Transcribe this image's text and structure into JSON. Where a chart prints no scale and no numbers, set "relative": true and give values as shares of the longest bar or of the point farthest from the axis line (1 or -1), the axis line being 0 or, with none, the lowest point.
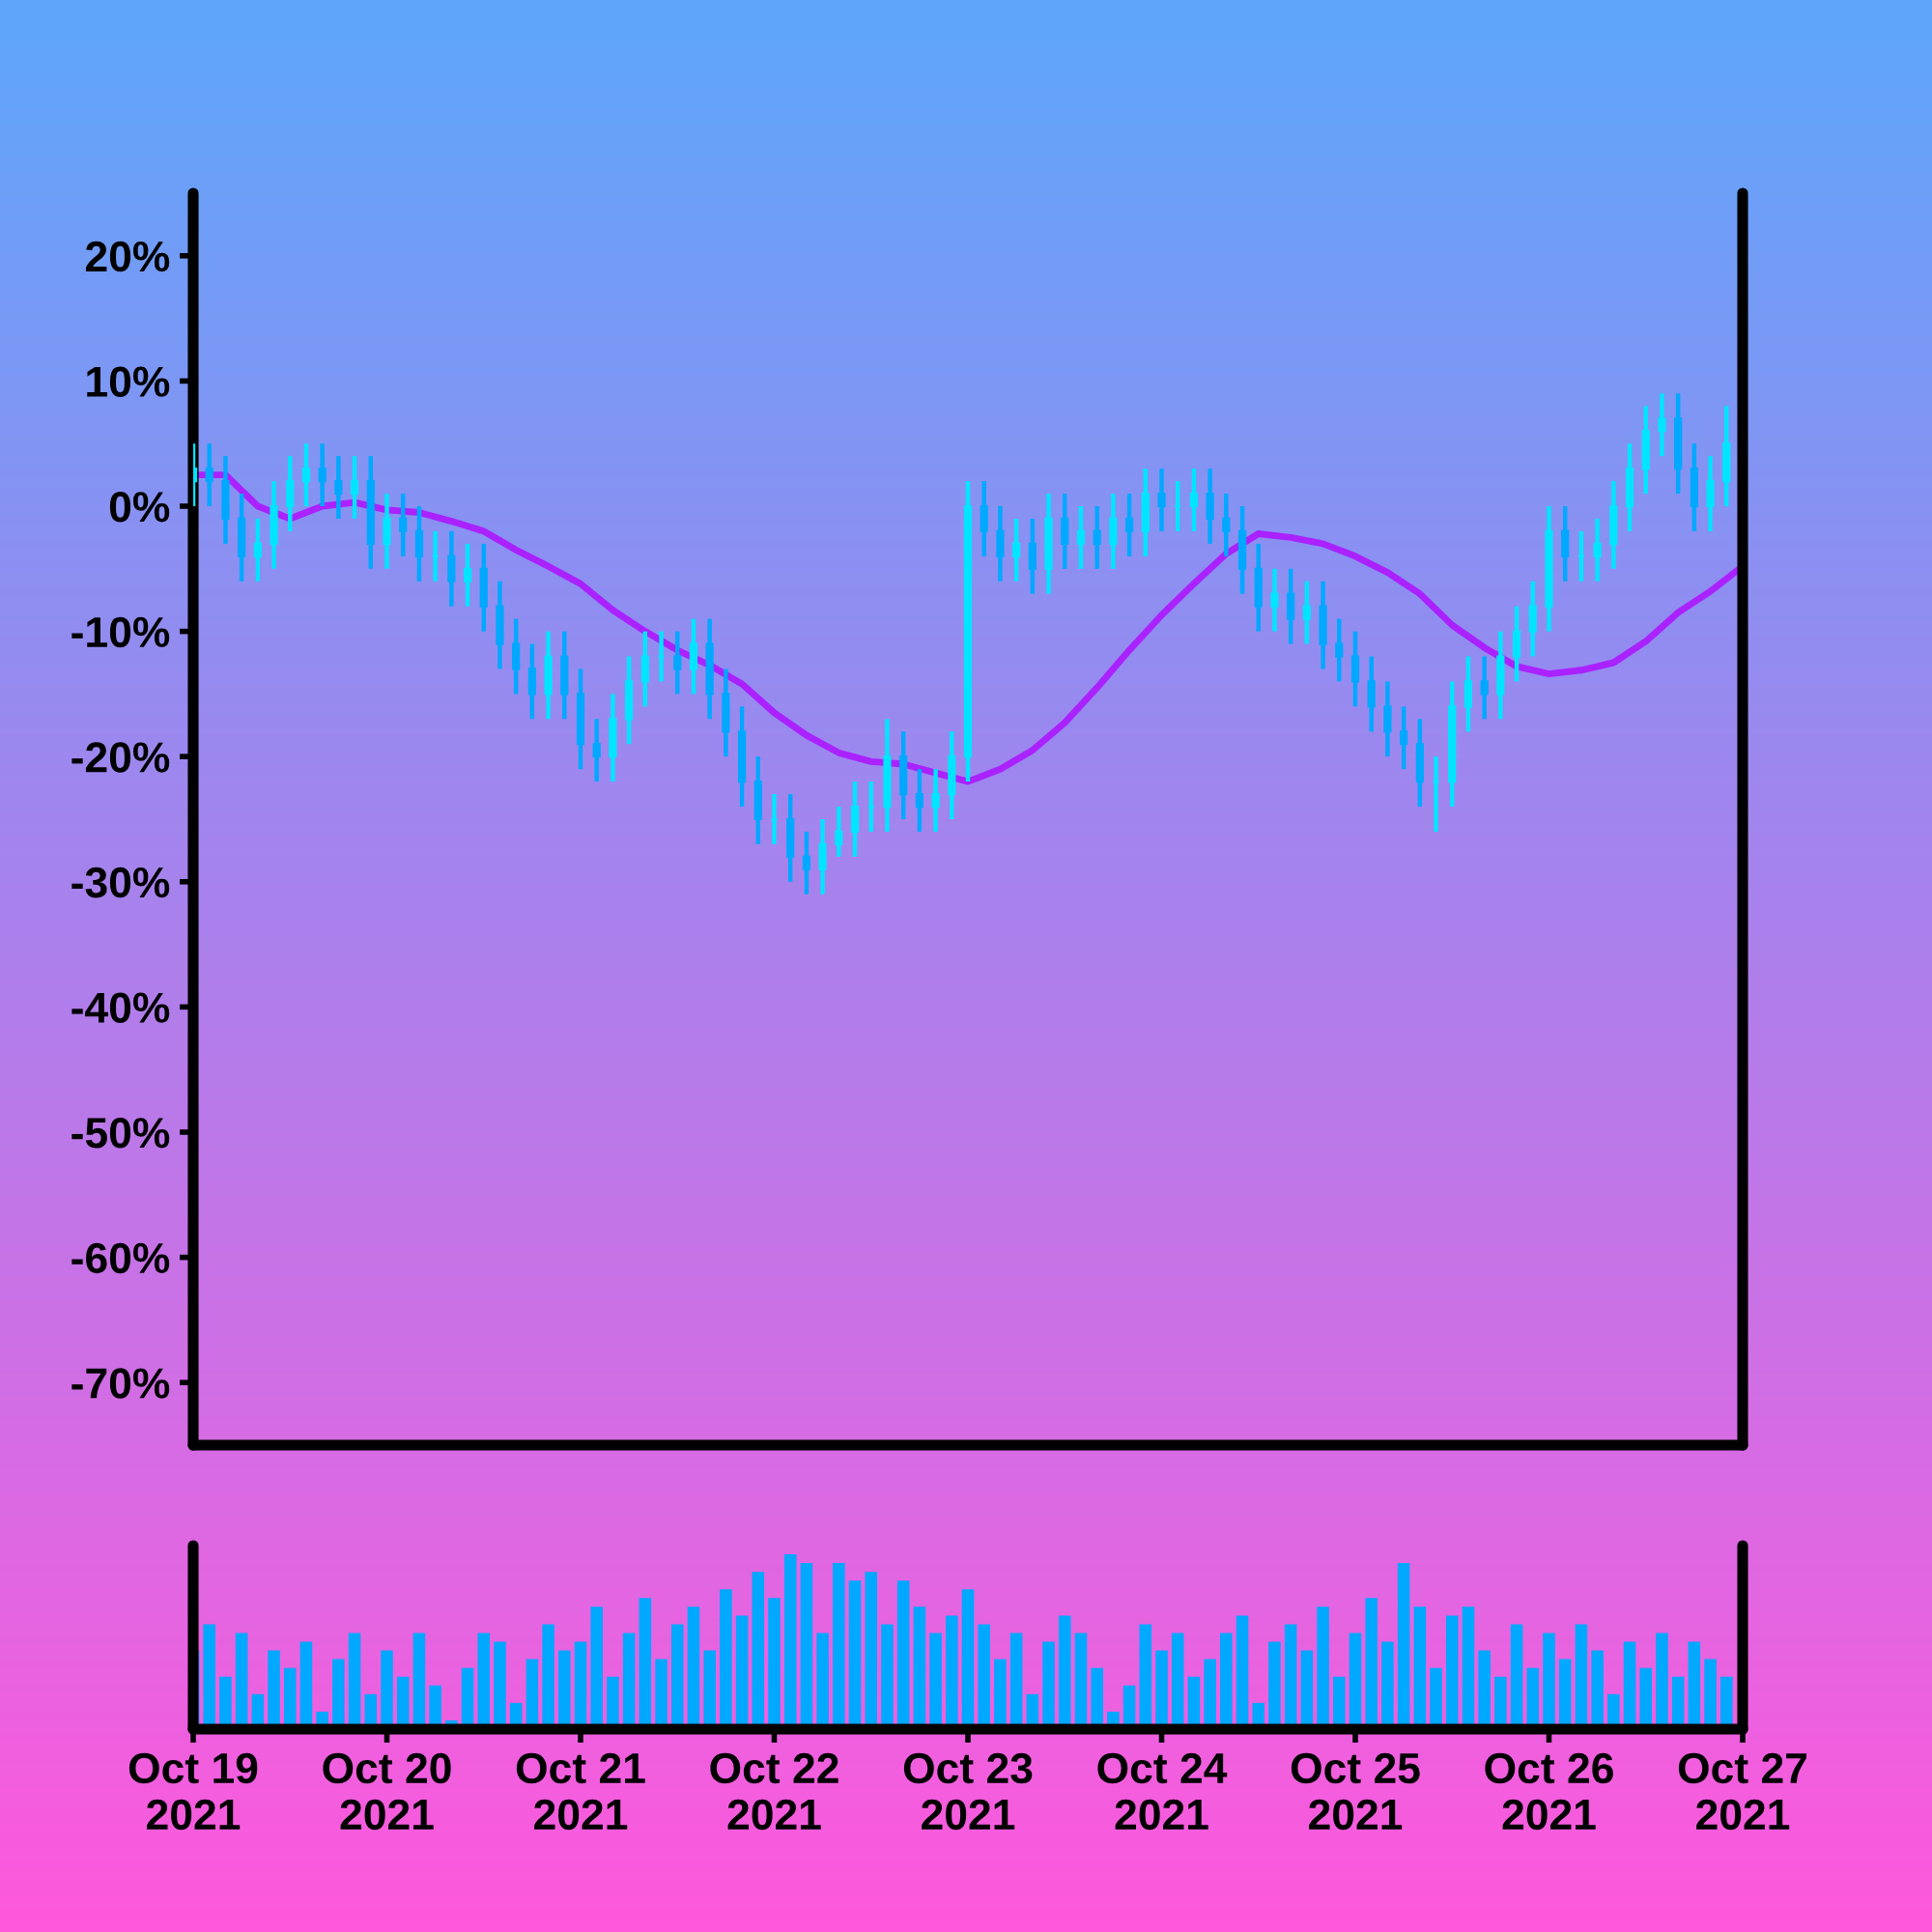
{
  "chart_data": [
    {
      "type": "candlestick",
      "tick_labels": "y",
      "xlim": [
        "2021-10-19",
        "2021-10-27"
      ],
      "ylim": [
        -75,
        25
      ],
      "yticks": [
        {
          "value": 20,
          "label": "20%"
        },
        {
          "value": 10,
          "label": "10%"
        },
        {
          "value": 0,
          "label": "0%"
        },
        {
          "value": -10,
          "label": "-10%"
        },
        {
          "value": -20,
          "label": "-20%"
        },
        {
          "value": -30,
          "label": "-30%"
        },
        {
          "value": -40,
          "label": "-40%"
        },
        {
          "value": -50,
          "label": "-50%"
        },
        {
          "value": -60,
          "label": "-60%"
        },
        {
          "value": -70,
          "label": "-70%"
        }
      ],
      "grid": false,
      "legend": false,
      "x": [
        "2021-10-19T00:00",
        "2021-10-19T02:00",
        "2021-10-19T04:00",
        "2021-10-19T06:00",
        "2021-10-19T08:00",
        "2021-10-19T10:00",
        "2021-10-19T12:00",
        "2021-10-19T14:00",
        "2021-10-19T16:00",
        "2021-10-19T18:00",
        "2021-10-19T20:00",
        "2021-10-19T22:00",
        "2021-10-20T00:00",
        "2021-10-20T02:00",
        "2021-10-20T04:00",
        "2021-10-20T06:00",
        "2021-10-20T08:00",
        "2021-10-20T10:00",
        "2021-10-20T12:00",
        "2021-10-20T14:00",
        "2021-10-20T16:00",
        "2021-10-20T18:00",
        "2021-10-20T20:00",
        "2021-10-20T22:00",
        "2021-10-21T00:00",
        "2021-10-21T02:00",
        "2021-10-21T04:00",
        "2021-10-21T06:00",
        "2021-10-21T08:00",
        "2021-10-21T10:00",
        "2021-10-21T12:00",
        "2021-10-21T14:00",
        "2021-10-21T16:00",
        "2021-10-21T18:00",
        "2021-10-21T20:00",
        "2021-10-21T22:00",
        "2021-10-22T00:00",
        "2021-10-22T02:00",
        "2021-10-22T04:00",
        "2021-10-22T06:00",
        "2021-10-22T08:00",
        "2021-10-22T10:00",
        "2021-10-22T12:00",
        "2021-10-22T14:00",
        "2021-10-22T16:00",
        "2021-10-22T18:00",
        "2021-10-22T20:00",
        "2021-10-22T22:00",
        "2021-10-23T00:00",
        "2021-10-23T02:00",
        "2021-10-23T04:00",
        "2021-10-23T06:00",
        "2021-10-23T08:00",
        "2021-10-23T10:00",
        "2021-10-23T12:00",
        "2021-10-23T14:00",
        "2021-10-23T16:00",
        "2021-10-23T18:00",
        "2021-10-23T20:00",
        "2021-10-23T22:00",
        "2021-10-24T00:00",
        "2021-10-24T02:00",
        "2021-10-24T04:00",
        "2021-10-24T06:00",
        "2021-10-24T08:00",
        "2021-10-24T10:00",
        "2021-10-24T12:00",
        "2021-10-24T14:00",
        "2021-10-24T16:00",
        "2021-10-24T18:00",
        "2021-10-24T20:00",
        "2021-10-24T22:00",
        "2021-10-25T00:00",
        "2021-10-25T02:00",
        "2021-10-25T04:00",
        "2021-10-25T06:00",
        "2021-10-25T08:00",
        "2021-10-25T10:00",
        "2021-10-25T12:00",
        "2021-10-25T14:00",
        "2021-10-25T16:00",
        "2021-10-25T18:00",
        "2021-10-25T20:00",
        "2021-10-25T22:00",
        "2021-10-26T00:00",
        "2021-10-26T02:00",
        "2021-10-26T04:00",
        "2021-10-26T06:00",
        "2021-10-26T08:00",
        "2021-10-26T10:00",
        "2021-10-26T12:00",
        "2021-10-26T14:00",
        "2021-10-26T16:00",
        "2021-10-26T18:00",
        "2021-10-26T20:00",
        "2021-10-26T22:00"
      ],
      "ohlc": [
        [
          2,
          5,
          0,
          3
        ],
        [
          3,
          5,
          0,
          2
        ],
        [
          2,
          4,
          -3,
          -1
        ],
        [
          -1,
          1,
          -6,
          -4
        ],
        [
          -4,
          -1,
          -6,
          -3
        ],
        [
          -3,
          2,
          -5,
          0
        ],
        [
          0,
          4,
          -2,
          2
        ],
        [
          2,
          5,
          0,
          3
        ],
        [
          3,
          5,
          0,
          2
        ],
        [
          2,
          4,
          -1,
          1
        ],
        [
          1,
          4,
          -1,
          2
        ],
        [
          2,
          4,
          -5,
          -3
        ],
        [
          -3,
          1,
          -5,
          -1
        ],
        [
          -1,
          1,
          -4,
          -2
        ],
        [
          -2,
          0,
          -6,
          -4
        ],
        [
          -4,
          -2,
          -6,
          -4
        ],
        [
          -4,
          -2,
          -8,
          -6
        ],
        [
          -6,
          -3,
          -8,
          -5
        ],
        [
          -5,
          -3,
          -10,
          -8
        ],
        [
          -8,
          -6,
          -13,
          -11
        ],
        [
          -11,
          -9,
          -15,
          -13
        ],
        [
          -13,
          -11,
          -17,
          -15
        ],
        [
          -15,
          -10,
          -17,
          -12
        ],
        [
          -12,
          -10,
          -17,
          -15
        ],
        [
          -15,
          -13,
          -21,
          -19
        ],
        [
          -19,
          -17,
          -22,
          -20
        ],
        [
          -20,
          -15,
          -22,
          -17
        ],
        [
          -17,
          -12,
          -19,
          -14
        ],
        [
          -14,
          -10,
          -16,
          -12
        ],
        [
          -12,
          -10,
          -14,
          -12
        ],
        [
          -12,
          -10,
          -15,
          -13
        ],
        [
          -13,
          -9,
          -15,
          -11
        ],
        [
          -11,
          -9,
          -17,
          -15
        ],
        [
          -15,
          -13,
          -20,
          -18
        ],
        [
          -18,
          -16,
          -24,
          -22
        ],
        [
          -22,
          -20,
          -27,
          -25
        ],
        [
          -25,
          -23,
          -27,
          -25
        ],
        [
          -25,
          -23,
          -30,
          -28
        ],
        [
          -28,
          -26,
          -31,
          -29
        ],
        [
          -29,
          -25,
          -31,
          -27
        ],
        [
          -27,
          -24,
          -28,
          -26
        ],
        [
          -26,
          -22,
          -28,
          -24
        ],
        [
          -24,
          -22,
          -26,
          -24
        ],
        [
          -24,
          -17,
          -26,
          -20
        ],
        [
          -20,
          -18,
          -25,
          -23
        ],
        [
          -23,
          -21,
          -26,
          -24
        ],
        [
          -24,
          -21,
          -26,
          -23
        ],
        [
          -23,
          -18,
          -25,
          -20
        ],
        [
          -20,
          2,
          -22,
          0
        ],
        [
          0,
          2,
          -4,
          -2
        ],
        [
          -2,
          0,
          -6,
          -4
        ],
        [
          -4,
          -1,
          -6,
          -3
        ],
        [
          -3,
          -1,
          -7,
          -5
        ],
        [
          -5,
          1,
          -7,
          -1
        ],
        [
          -1,
          1,
          -5,
          -3
        ],
        [
          -3,
          0,
          -5,
          -2
        ],
        [
          -2,
          0,
          -5,
          -3
        ],
        [
          -3,
          1,
          -5,
          -1
        ],
        [
          -1,
          1,
          -4,
          -2
        ],
        [
          -2,
          3,
          -4,
          1
        ],
        [
          1,
          3,
          -2,
          0
        ],
        [
          0,
          2,
          -2,
          0
        ],
        [
          0,
          3,
          -2,
          1
        ],
        [
          1,
          3,
          -3,
          -1
        ],
        [
          -1,
          1,
          -4,
          -2
        ],
        [
          -2,
          0,
          -7,
          -5
        ],
        [
          -5,
          -3,
          -10,
          -8
        ],
        [
          -8,
          -5,
          -10,
          -7
        ],
        [
          -7,
          -5,
          -11,
          -9
        ],
        [
          -9,
          -6,
          -11,
          -8
        ],
        [
          -8,
          -6,
          -13,
          -11
        ],
        [
          -11,
          -9,
          -14,
          -12
        ],
        [
          -12,
          -10,
          -16,
          -14
        ],
        [
          -14,
          -12,
          -18,
          -16
        ],
        [
          -16,
          -14,
          -20,
          -18
        ],
        [
          -18,
          -16,
          -21,
          -19
        ],
        [
          -19,
          -17,
          -24,
          -22
        ],
        [
          -22,
          -20,
          -26,
          -22
        ],
        [
          -22,
          -14,
          -24,
          -16
        ],
        [
          -16,
          -12,
          -18,
          -14
        ],
        [
          -14,
          -12,
          -17,
          -15
        ],
        [
          -15,
          -10,
          -17,
          -12
        ],
        [
          -12,
          -8,
          -14,
          -10
        ],
        [
          -10,
          -6,
          -12,
          -8
        ],
        [
          -8,
          0,
          -10,
          -2
        ],
        [
          -2,
          0,
          -6,
          -4
        ],
        [
          -4,
          -2,
          -6,
          -4
        ],
        [
          -4,
          -1,
          -6,
          -3
        ],
        [
          -3,
          2,
          -5,
          0
        ],
        [
          0,
          5,
          -2,
          3
        ],
        [
          3,
          8,
          1,
          6
        ],
        [
          6,
          9,
          4,
          7
        ],
        [
          7,
          9,
          1,
          3
        ],
        [
          3,
          5,
          -2,
          0
        ],
        [
          0,
          4,
          -2,
          2
        ],
        [
          2,
          8,
          0,
          5
        ]
      ],
      "colors": [
        "#00e5ff",
        "#00a8ff",
        "#00a8ff",
        "#00a8ff",
        "#00e5ff",
        "#00e5ff",
        "#00e5ff",
        "#00e5ff",
        "#00a8ff",
        "#00a8ff",
        "#00e5ff",
        "#00a8ff",
        "#00e5ff",
        "#00a8ff",
        "#00a8ff",
        "#00e5ff",
        "#00a8ff",
        "#00e5ff",
        "#00a8ff",
        "#00a8ff",
        "#00a8ff",
        "#00a8ff",
        "#00e5ff",
        "#00a8ff",
        "#00a8ff",
        "#00a8ff",
        "#00e5ff",
        "#00e5ff",
        "#00e5ff",
        "#00e5ff",
        "#00a8ff",
        "#00e5ff",
        "#00a8ff",
        "#00a8ff",
        "#00a8ff",
        "#00a8ff",
        "#00e5ff",
        "#00a8ff",
        "#00a8ff",
        "#00e5ff",
        "#00e5ff",
        "#00e5ff",
        "#00e5ff",
        "#00e5ff",
        "#00a8ff",
        "#00a8ff",
        "#00e5ff",
        "#00e5ff",
        "#00e5ff",
        "#00a8ff",
        "#00a8ff",
        "#00e5ff",
        "#00a8ff",
        "#00e5ff",
        "#00a8ff",
        "#00e5ff",
        "#00a8ff",
        "#00e5ff",
        "#00a8ff",
        "#00e5ff",
        "#00a8ff",
        "#00e5ff",
        "#00e5ff",
        "#00a8ff",
        "#00a8ff",
        "#00a8ff",
        "#00a8ff",
        "#00e5ff",
        "#00a8ff",
        "#00e5ff",
        "#00a8ff",
        "#00a8ff",
        "#00a8ff",
        "#00a8ff",
        "#00a8ff",
        "#00a8ff",
        "#00a8ff",
        "#00e5ff",
        "#00e5ff",
        "#00e5ff",
        "#00a8ff",
        "#00e5ff",
        "#00e5ff",
        "#00e5ff",
        "#00e5ff",
        "#00a8ff",
        "#00e5ff",
        "#00e5ff",
        "#00e5ff",
        "#00e5ff",
        "#00e5ff",
        "#00e5ff",
        "#00a8ff",
        "#00a8ff",
        "#00e5ff",
        "#00e5ff"
      ],
      "series": [
        {
          "type": "line",
          "color": "#aa22ff",
          "x": [
            "2021-10-19T00:00",
            "2021-10-19T04:00",
            "2021-10-19T08:00",
            "2021-10-19T12:00",
            "2021-10-19T16:00",
            "2021-10-19T20:00",
            "2021-10-20T00:00",
            "2021-10-20T04:00",
            "2021-10-20T08:00",
            "2021-10-20T12:00",
            "2021-10-20T16:00",
            "2021-10-20T20:00",
            "2021-10-21T00:00",
            "2021-10-21T04:00",
            "2021-10-21T08:00",
            "2021-10-21T12:00",
            "2021-10-21T16:00",
            "2021-10-21T20:00",
            "2021-10-22T00:00",
            "2021-10-22T04:00",
            "2021-10-22T08:00",
            "2021-10-22T12:00",
            "2021-10-22T16:00",
            "2021-10-22T20:00",
            "2021-10-23T00:00",
            "2021-10-23T04:00",
            "2021-10-23T08:00",
            "2021-10-23T12:00",
            "2021-10-23T16:00",
            "2021-10-23T20:00",
            "2021-10-24T00:00",
            "2021-10-24T04:00",
            "2021-10-24T08:00",
            "2021-10-24T12:00",
            "2021-10-24T16:00",
            "2021-10-24T20:00",
            "2021-10-25T00:00",
            "2021-10-25T04:00",
            "2021-10-25T08:00",
            "2021-10-25T12:00",
            "2021-10-25T16:00",
            "2021-10-25T20:00",
            "2021-10-26T00:00",
            "2021-10-26T04:00",
            "2021-10-26T08:00",
            "2021-10-26T12:00",
            "2021-10-26T16:00",
            "2021-10-26T20:00",
            "2021-10-27T00:00"
          ],
          "values": [
            2.5,
            2.5,
            0,
            -1,
            0,
            0.3,
            -0.3,
            -0.5,
            -1.2,
            -2,
            -3.5,
            -4.8,
            -6.2,
            -8.3,
            -10,
            -11.5,
            -12.7,
            -14.2,
            -16.5,
            -18.3,
            -19.7,
            -20.4,
            -20.6,
            -21.3,
            -22,
            -21,
            -19.5,
            -17.3,
            -14.5,
            -11.5,
            -8.7,
            -6.2,
            -3.8,
            -2.2,
            -2.5,
            -3,
            -4,
            -5.3,
            -7,
            -9.5,
            -11.3,
            -12.8,
            -13.4,
            -13.1,
            -12.5,
            -10.8,
            -8.5,
            -6.8,
            -4.8
          ]
        }
      ]
    },
    {
      "type": "bar",
      "relative": true,
      "tick_labels": "x",
      "xlim": [
        "2021-10-19",
        "2021-10-27"
      ],
      "color": "#00a8ff",
      "grid": false,
      "legend": false,
      "xticks": [
        {
          "value": "2021-10-19",
          "label": "Oct 19\n2021"
        },
        {
          "value": "2021-10-20",
          "label": "Oct 20\n2021"
        },
        {
          "value": "2021-10-21",
          "label": "Oct 21\n2021"
        },
        {
          "value": "2021-10-22",
          "label": "Oct 22\n2021"
        },
        {
          "value": "2021-10-23",
          "label": "Oct 23\n2021"
        },
        {
          "value": "2021-10-24",
          "label": "Oct 24\n2021"
        },
        {
          "value": "2021-10-25",
          "label": "Oct 25\n2021"
        },
        {
          "value": "2021-10-26",
          "label": "Oct 26\n2021"
        },
        {
          "value": "2021-10-27",
          "label": "Oct 27\n2021"
        }
      ],
      "x": [
        "2021-10-19T00:00",
        "2021-10-19T02:00",
        "2021-10-19T04:00",
        "2021-10-19T06:00",
        "2021-10-19T08:00",
        "2021-10-19T10:00",
        "2021-10-19T12:00",
        "2021-10-19T14:00",
        "2021-10-19T16:00",
        "2021-10-19T18:00",
        "2021-10-19T20:00",
        "2021-10-19T22:00",
        "2021-10-20T00:00",
        "2021-10-20T02:00",
        "2021-10-20T04:00",
        "2021-10-20T06:00",
        "2021-10-20T08:00",
        "2021-10-20T10:00",
        "2021-10-20T12:00",
        "2021-10-20T14:00",
        "2021-10-20T16:00",
        "2021-10-20T18:00",
        "2021-10-20T20:00",
        "2021-10-20T22:00",
        "2021-10-21T00:00",
        "2021-10-21T02:00",
        "2021-10-21T04:00",
        "2021-10-21T06:00",
        "2021-10-21T08:00",
        "2021-10-21T10:00",
        "2021-10-21T12:00",
        "2021-10-21T14:00",
        "2021-10-21T16:00",
        "2021-10-21T18:00",
        "2021-10-21T20:00",
        "2021-10-21T22:00",
        "2021-10-22T00:00",
        "2021-10-22T02:00",
        "2021-10-22T04:00",
        "2021-10-22T06:00",
        "2021-10-22T08:00",
        "2021-10-22T10:00",
        "2021-10-22T12:00",
        "2021-10-22T14:00",
        "2021-10-22T16:00",
        "2021-10-22T18:00",
        "2021-10-22T20:00",
        "2021-10-22T22:00",
        "2021-10-23T00:00",
        "2021-10-23T02:00",
        "2021-10-23T04:00",
        "2021-10-23T06:00",
        "2021-10-23T08:00",
        "2021-10-23T10:00",
        "2021-10-23T12:00",
        "2021-10-23T14:00",
        "2021-10-23T16:00",
        "2021-10-23T18:00",
        "2021-10-23T20:00",
        "2021-10-23T22:00",
        "2021-10-24T00:00",
        "2021-10-24T02:00",
        "2021-10-24T04:00",
        "2021-10-24T06:00",
        "2021-10-24T08:00",
        "2021-10-24T10:00",
        "2021-10-24T12:00",
        "2021-10-24T14:00",
        "2021-10-24T16:00",
        "2021-10-24T18:00",
        "2021-10-24T20:00",
        "2021-10-24T22:00",
        "2021-10-25T00:00",
        "2021-10-25T02:00",
        "2021-10-25T04:00",
        "2021-10-25T06:00",
        "2021-10-25T08:00",
        "2021-10-25T10:00",
        "2021-10-25T12:00",
        "2021-10-25T14:00",
        "2021-10-25T16:00",
        "2021-10-25T18:00",
        "2021-10-25T20:00",
        "2021-10-25T22:00",
        "2021-10-26T00:00",
        "2021-10-26T02:00",
        "2021-10-26T04:00",
        "2021-10-26T06:00",
        "2021-10-26T08:00",
        "2021-10-26T10:00",
        "2021-10-26T12:00",
        "2021-10-26T14:00",
        "2021-10-26T16:00",
        "2021-10-26T18:00",
        "2021-10-26T20:00",
        "2021-10-26T22:00"
      ],
      "values": [
        0.45,
        0.6,
        0.3,
        0.55,
        0.2,
        0.45,
        0.35,
        0.5,
        0.1,
        0.4,
        0.55,
        0.2,
        0.45,
        0.3,
        0.55,
        0.25,
        0.05,
        0.35,
        0.55,
        0.5,
        0.15,
        0.4,
        0.6,
        0.45,
        0.5,
        0.7,
        0.3,
        0.55,
        0.75,
        0.4,
        0.6,
        0.7,
        0.45,
        0.8,
        0.65,
        0.9,
        0.75,
        1.0,
        0.95,
        0.55,
        0.95,
        0.85,
        0.9,
        0.6,
        0.85,
        0.7,
        0.55,
        0.65,
        0.8,
        0.6,
        0.4,
        0.55,
        0.2,
        0.5,
        0.65,
        0.55,
        0.35,
        0.1,
        0.25,
        0.6,
        0.45,
        0.55,
        0.3,
        0.4,
        0.55,
        0.65,
        0.15,
        0.5,
        0.6,
        0.45,
        0.7,
        0.3,
        0.55,
        0.75,
        0.5,
        0.95,
        0.7,
        0.35,
        0.65,
        0.7,
        0.45,
        0.3,
        0.6,
        0.35,
        0.55,
        0.4,
        0.6,
        0.45,
        0.2,
        0.5,
        0.35,
        0.55,
        0.3,
        0.5,
        0.4,
        0.3
      ]
    }
  ]
}
